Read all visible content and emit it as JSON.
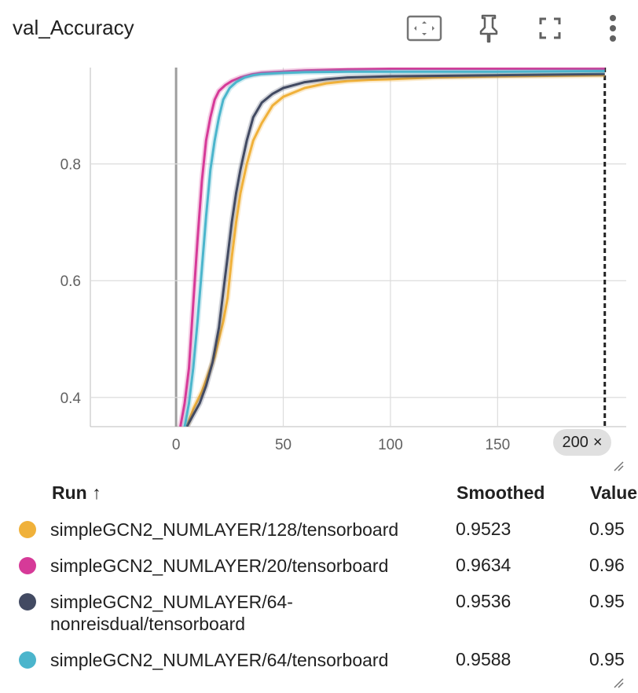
{
  "card": {
    "title": "val_Accuracy",
    "toolbar": [
      {
        "name": "fit-domain-icon"
      },
      {
        "name": "pin-icon"
      },
      {
        "name": "fullscreen-icon"
      },
      {
        "name": "more-vert-icon"
      }
    ]
  },
  "step_badge": {
    "label": "200",
    "close": "×"
  },
  "table": {
    "headers": {
      "run": "Run",
      "sort": "↑",
      "smoothed": "Smoothed",
      "value": "Value"
    },
    "rows": [
      {
        "run": "simpleGCN2_NUMLAYER/128/tensorboard",
        "smoothed": "0.9523",
        "value": "0.95",
        "color": "#f0b13a"
      },
      {
        "run": "simpleGCN2_NUMLAYER/20/tensorboard",
        "smoothed": "0.9634",
        "value": "0.96",
        "color": "#d63a98"
      },
      {
        "run": "simpleGCN2_NUMLAYER/64-nonreisdual/tensorboard",
        "run_line1": "simpleGCN2_NUMLAYER/64-",
        "run_line2": "nonreisdual/tensorboard",
        "smoothed": "0.9536",
        "value": "0.95",
        "color": "#424a62"
      },
      {
        "run": "simpleGCN2_NUMLAYER/64/tensorboard",
        "smoothed": "0.9588",
        "value": "0.95",
        "color": "#4bb5cc"
      }
    ]
  },
  "chart_data": {
    "type": "line",
    "title": "val_Accuracy",
    "xlabel": "",
    "ylabel": "",
    "xlim": [
      -40,
      210
    ],
    "ylim": [
      0.35,
      0.965
    ],
    "x_ticks": [
      0,
      50,
      100,
      150
    ],
    "y_ticks": [
      0.4,
      0.6,
      0.8
    ],
    "grid": true,
    "selected_step": 200,
    "series": [
      {
        "name": "simpleGCN2_NUMLAYER/128/tensorboard",
        "color": "#f0b13a",
        "x": [
          5,
          8,
          12,
          15,
          18,
          20,
          22,
          24,
          26,
          28,
          30,
          33,
          36,
          40,
          45,
          50,
          60,
          70,
          80,
          90,
          100,
          120,
          150,
          200
        ],
        "y": [
          0.35,
          0.38,
          0.41,
          0.44,
          0.47,
          0.5,
          0.53,
          0.57,
          0.64,
          0.7,
          0.75,
          0.8,
          0.84,
          0.87,
          0.9,
          0.915,
          0.93,
          0.938,
          0.942,
          0.944,
          0.945,
          0.948,
          0.95,
          0.952
        ]
      },
      {
        "name": "simpleGCN2_NUMLAYER/20/tensorboard",
        "color": "#d63a98",
        "x": [
          2,
          4,
          6,
          8,
          10,
          12,
          14,
          16,
          18,
          20,
          23,
          26,
          30,
          35,
          40,
          50,
          60,
          80,
          100,
          150,
          200
        ],
        "y": [
          0.35,
          0.39,
          0.45,
          0.56,
          0.67,
          0.77,
          0.84,
          0.88,
          0.91,
          0.925,
          0.935,
          0.942,
          0.948,
          0.953,
          0.956,
          0.958,
          0.96,
          0.962,
          0.963,
          0.963,
          0.963
        ]
      },
      {
        "name": "simpleGCN2_NUMLAYER/64-nonreisdual/tensorboard",
        "color": "#424a62",
        "x": [
          5,
          8,
          11,
          14,
          17,
          20,
          22,
          24,
          26,
          28,
          30,
          33,
          36,
          40,
          45,
          50,
          60,
          70,
          80,
          100,
          150,
          200
        ],
        "y": [
          0.35,
          0.37,
          0.39,
          0.42,
          0.46,
          0.52,
          0.58,
          0.64,
          0.7,
          0.75,
          0.79,
          0.84,
          0.88,
          0.905,
          0.92,
          0.93,
          0.94,
          0.945,
          0.948,
          0.95,
          0.952,
          0.954
        ]
      },
      {
        "name": "simpleGCN2_NUMLAYER/64/tensorboard",
        "color": "#4bb5cc",
        "x": [
          4,
          6,
          8,
          10,
          12,
          14,
          16,
          18,
          20,
          22,
          25,
          28,
          32,
          36,
          40,
          50,
          60,
          80,
          100,
          150,
          200
        ],
        "y": [
          0.35,
          0.39,
          0.45,
          0.53,
          0.62,
          0.71,
          0.79,
          0.84,
          0.88,
          0.91,
          0.93,
          0.94,
          0.948,
          0.952,
          0.954,
          0.956,
          0.957,
          0.958,
          0.958,
          0.958,
          0.959
        ]
      }
    ]
  }
}
